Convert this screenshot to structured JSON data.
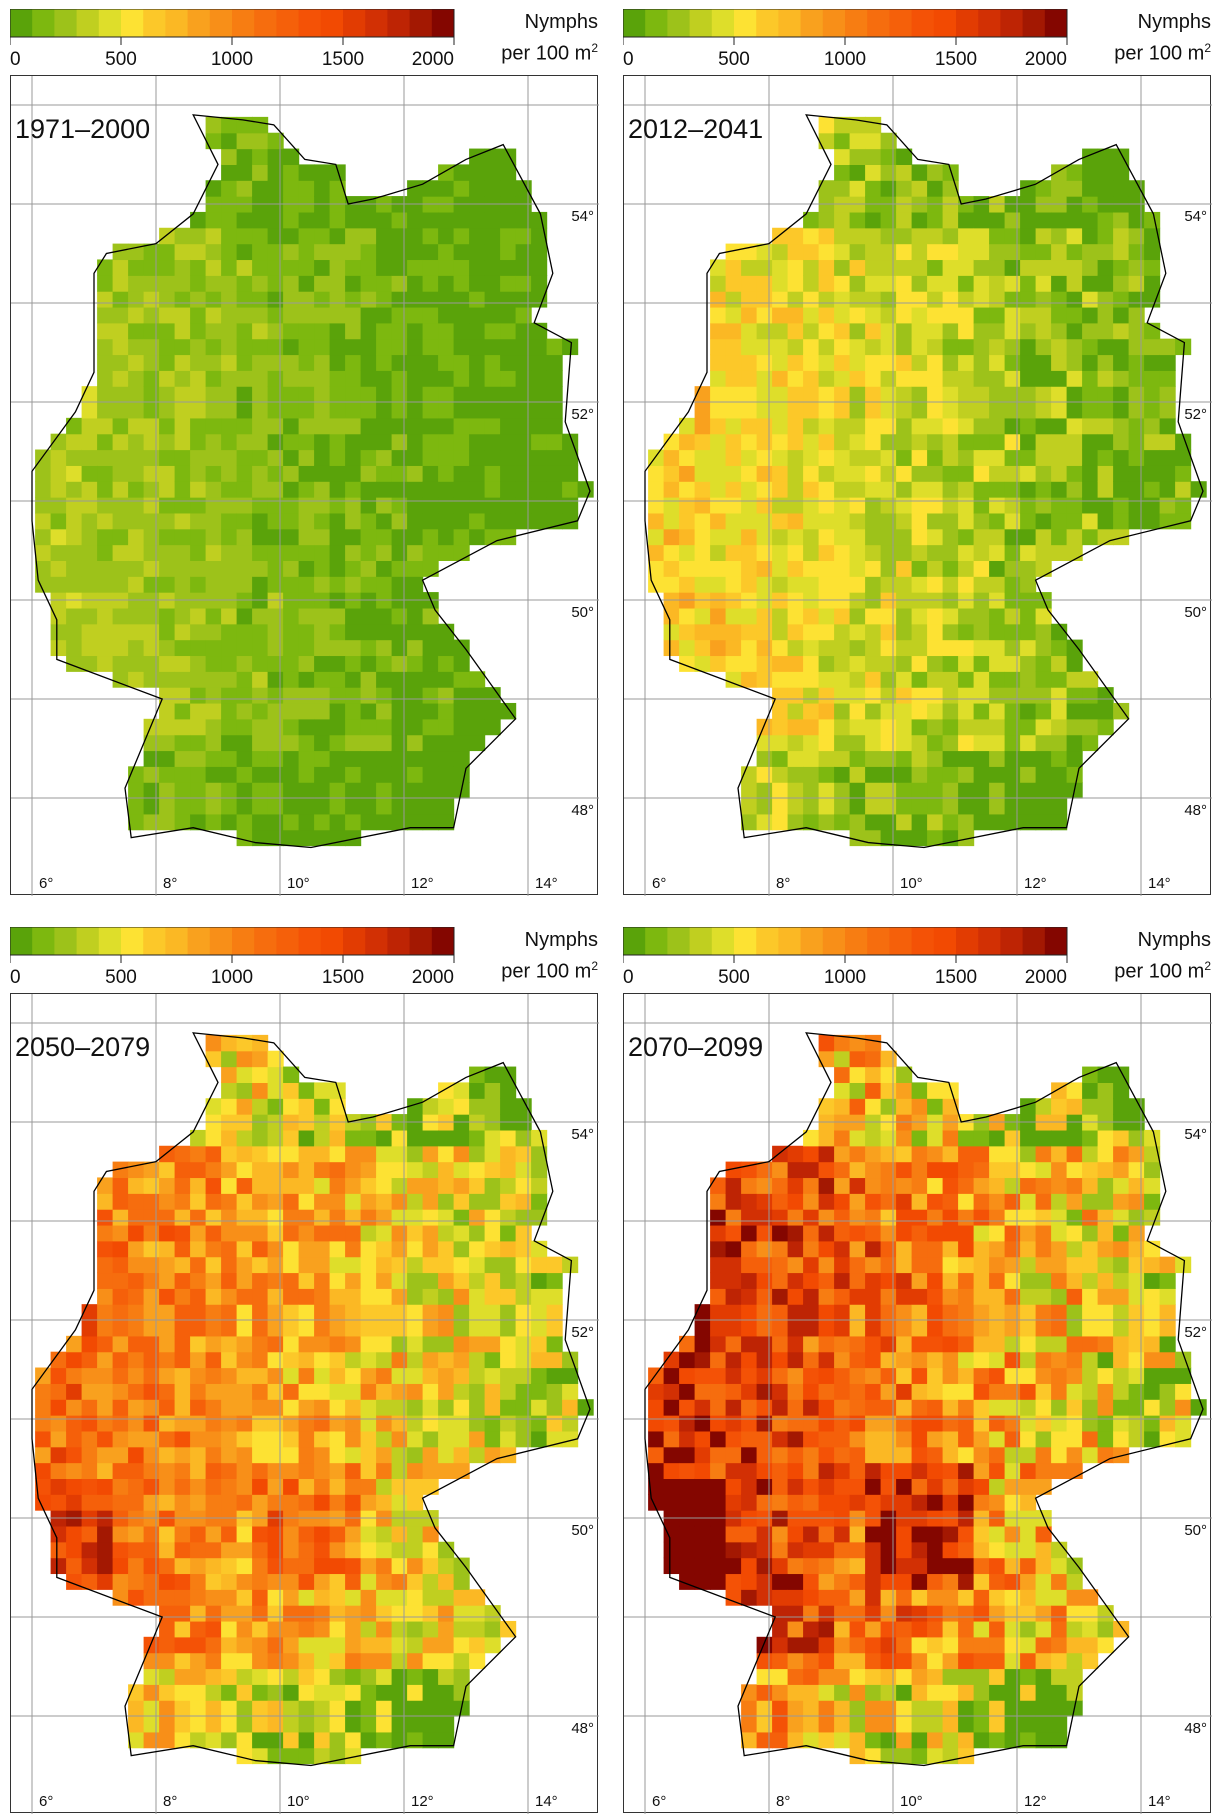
{
  "figure": {
    "panels": [
      {
        "period": "1971–2000"
      },
      {
        "period": "2012–2041"
      },
      {
        "period": "2050–2079"
      },
      {
        "period": "2070–2099"
      }
    ],
    "colorbar": {
      "unit_line1": "Nymphs",
      "unit_line2": "per 100 m",
      "unit_sup": "2",
      "ticks": [
        "0",
        "500",
        "1000",
        "1500",
        "2000"
      ],
      "range": [
        0,
        2000
      ],
      "bin_width": 100,
      "colors": [
        "#5aa30a",
        "#7db80f",
        "#9dc21a",
        "#c0cf20",
        "#dede2a",
        "#fde233",
        "#fcc829",
        "#fbb824",
        "#f9a11e",
        "#f88f18",
        "#f77d12",
        "#f66d0e",
        "#f5600a",
        "#f45206",
        "#f24a02",
        "#e23c02",
        "#d23004",
        "#be2404",
        "#a31802",
        "#840600"
      ]
    },
    "axes": {
      "lon_labels": [
        "6°",
        "8°",
        "10°",
        "12°",
        "14°"
      ],
      "lat_labels": [
        "54°",
        "52°",
        "50°",
        "48°"
      ]
    }
  }
}
